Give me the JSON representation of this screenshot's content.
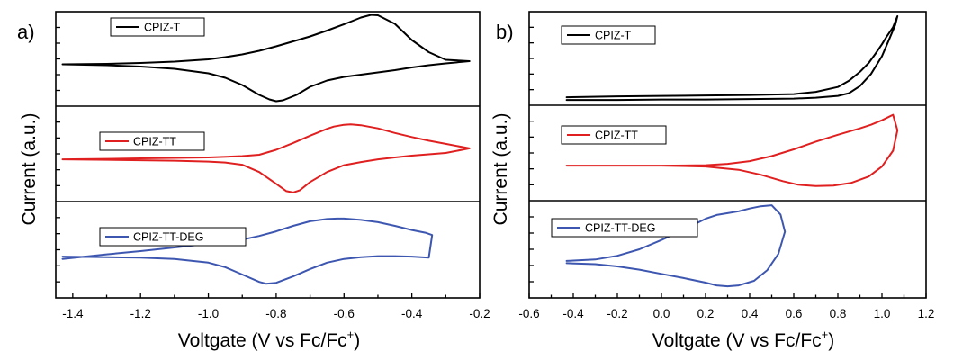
{
  "figure": {
    "ylabel": "Current (a.u.)",
    "xlabel_main": "Voltgate (V vs Fc/Fc",
    "xlabel_sup": "+",
    "xlabel_end": ")"
  },
  "colors": {
    "CPIZ-T": "#000000",
    "CPIZ-TT": "#e02020",
    "CPIZ-TT-DEG": "#3d56b0"
  },
  "chart_data": [
    {
      "panel": "a)",
      "type": "line",
      "xlim": [
        -1.45,
        -0.2
      ],
      "xticks": [
        -1.4,
        -1.2,
        -1.0,
        -0.8,
        -0.6,
        -0.4,
        -0.2
      ],
      "xtick_labels": [
        "-1.4",
        "-1.2",
        "-1.0",
        "-0.8",
        "-0.6",
        "-0.4",
        "-0.2"
      ],
      "xlabel": "Voltgate (V vs Fc/Fc+)",
      "ylabel": "Current (a.u.)",
      "stacked_panels": [
        {
          "ylim": [
            -1.05,
            1.05
          ],
          "series": [
            {
              "name": "CPIZ-T",
              "color": "#000000",
              "x": [
                -1.43,
                -1.3,
                -1.2,
                -1.1,
                -1.0,
                -0.95,
                -0.9,
                -0.85,
                -0.82,
                -0.8,
                -0.78,
                -0.74,
                -0.7,
                -0.65,
                -0.6,
                -0.55,
                -0.5,
                -0.45,
                -0.4,
                -0.35,
                -0.3,
                -0.23,
                -0.3,
                -0.35,
                -0.4,
                -0.45,
                -0.5,
                -0.52,
                -0.55,
                -0.6,
                -0.65,
                -0.7,
                -0.75,
                -0.8,
                -0.85,
                -0.9,
                -0.95,
                -1.0,
                -1.1,
                -1.2,
                -1.3,
                -1.43
              ],
              "y": [
                -0.12,
                -0.14,
                -0.17,
                -0.22,
                -0.32,
                -0.42,
                -0.58,
                -0.8,
                -0.9,
                -0.94,
                -0.92,
                -0.8,
                -0.62,
                -0.48,
                -0.4,
                -0.35,
                -0.3,
                -0.25,
                -0.19,
                -0.14,
                -0.1,
                -0.05,
                -0.02,
                0.15,
                0.42,
                0.78,
                0.97,
                0.98,
                0.92,
                0.77,
                0.63,
                0.5,
                0.39,
                0.28,
                0.18,
                0.1,
                0.04,
                -0.01,
                -0.06,
                -0.09,
                -0.11,
                -0.12
              ]
            }
          ]
        },
        {
          "ylim": [
            -1.05,
            1.05
          ],
          "series": [
            {
              "name": "CPIZ-TT",
              "color": "#e02020",
              "x": [
                -1.43,
                -1.3,
                -1.2,
                -1.1,
                -1.0,
                -0.95,
                -0.9,
                -0.85,
                -0.8,
                -0.77,
                -0.75,
                -0.73,
                -0.7,
                -0.65,
                -0.6,
                -0.55,
                -0.5,
                -0.45,
                -0.4,
                -0.35,
                -0.3,
                -0.23,
                -0.3,
                -0.35,
                -0.4,
                -0.45,
                -0.5,
                -0.55,
                -0.58,
                -0.6,
                -0.63,
                -0.65,
                -0.7,
                -0.75,
                -0.8,
                -0.85,
                -0.9,
                -1.0,
                -1.1,
                -1.2,
                -1.3,
                -1.43
              ],
              "y": [
                -0.12,
                -0.13,
                -0.14,
                -0.15,
                -0.17,
                -0.19,
                -0.24,
                -0.4,
                -0.66,
                -0.82,
                -0.85,
                -0.8,
                -0.62,
                -0.4,
                -0.25,
                -0.18,
                -0.12,
                -0.08,
                -0.04,
                -0.01,
                0.02,
                0.12,
                0.22,
                0.29,
                0.37,
                0.46,
                0.56,
                0.63,
                0.65,
                0.64,
                0.6,
                0.55,
                0.4,
                0.24,
                0.09,
                -0.02,
                -0.05,
                -0.08,
                -0.09,
                -0.1,
                -0.11,
                -0.12
              ]
            }
          ]
        },
        {
          "ylim": [
            -1.05,
            1.05
          ],
          "series": [
            {
              "name": "CPIZ-TT-DEG",
              "color": "#3d56b0",
              "x": [
                -1.43,
                -1.3,
                -1.2,
                -1.1,
                -1.0,
                -0.95,
                -0.9,
                -0.85,
                -0.83,
                -0.8,
                -0.75,
                -0.7,
                -0.65,
                -0.6,
                -0.55,
                -0.5,
                -0.45,
                -0.4,
                -0.35,
                -0.34,
                -0.36,
                -0.4,
                -0.45,
                -0.5,
                -0.55,
                -0.6,
                -0.62,
                -0.65,
                -0.7,
                -0.75,
                -0.8,
                -0.85,
                -0.9,
                -1.0,
                -1.1,
                -1.2,
                -1.3,
                -1.43
              ],
              "y": [
                -0.15,
                -0.16,
                -0.17,
                -0.2,
                -0.28,
                -0.38,
                -0.54,
                -0.7,
                -0.74,
                -0.72,
                -0.58,
                -0.42,
                -0.28,
                -0.2,
                -0.16,
                -0.14,
                -0.14,
                -0.15,
                -0.17,
                0.32,
                0.37,
                0.43,
                0.52,
                0.6,
                0.65,
                0.68,
                0.68,
                0.67,
                0.62,
                0.52,
                0.4,
                0.3,
                0.22,
                0.13,
                0.05,
                -0.03,
                -0.1,
                -0.2
              ]
            }
          ]
        }
      ]
    },
    {
      "panel": "b)",
      "type": "line",
      "xlim": [
        -0.6,
        1.2
      ],
      "xticks": [
        -0.6,
        -0.4,
        -0.2,
        0.0,
        0.2,
        0.4,
        0.6,
        0.8,
        1.0,
        1.2
      ],
      "xtick_labels": [
        "-0.6",
        "-0.4",
        "-0.2",
        "0.0",
        "0.2",
        "0.4",
        "0.6",
        "0.8",
        "1.0",
        "1.2"
      ],
      "xlabel": "Voltgate (V vs Fc/Fc+)",
      "ylabel": "Current (a.u.)",
      "stacked_panels": [
        {
          "ylim": [
            -1.05,
            1.05
          ],
          "series": [
            {
              "name": "CPIZ-T",
              "color": "#000000",
              "x": [
                -0.43,
                -0.2,
                0.0,
                0.2,
                0.4,
                0.6,
                0.7,
                0.8,
                0.85,
                0.9,
                0.95,
                1.0,
                1.03,
                1.06,
                1.07,
                1.05,
                1.02,
                1.0,
                0.97,
                0.94,
                0.9,
                0.85,
                0.8,
                0.7,
                0.6,
                0.4,
                0.2,
                0.0,
                -0.2,
                -0.43
              ],
              "y": [
                -0.93,
                -0.93,
                -0.92,
                -0.92,
                -0.91,
                -0.9,
                -0.88,
                -0.84,
                -0.78,
                -0.62,
                -0.35,
                0.05,
                0.4,
                0.75,
                0.95,
                0.7,
                0.48,
                0.32,
                0.1,
                -0.1,
                -0.3,
                -0.5,
                -0.64,
                -0.75,
                -0.8,
                -0.82,
                -0.83,
                -0.84,
                -0.85,
                -0.87
              ]
            }
          ]
        },
        {
          "ylim": [
            -1.05,
            1.05
          ],
          "series": [
            {
              "name": "CPIZ-TT",
              "color": "#e02020",
              "x": [
                -0.43,
                -0.2,
                0.0,
                0.2,
                0.35,
                0.45,
                0.55,
                0.62,
                0.7,
                0.78,
                0.86,
                0.94,
                1.0,
                1.05,
                1.07,
                1.05,
                1.0,
                0.95,
                0.9,
                0.8,
                0.7,
                0.6,
                0.5,
                0.4,
                0.3,
                0.2,
                0.0,
                -0.2,
                -0.43
              ],
              "y": [
                -0.28,
                -0.28,
                -0.28,
                -0.3,
                -0.37,
                -0.48,
                -0.62,
                -0.7,
                -0.73,
                -0.72,
                -0.66,
                -0.52,
                -0.3,
                0.05,
                0.5,
                0.84,
                0.72,
                0.62,
                0.54,
                0.4,
                0.25,
                0.08,
                -0.07,
                -0.18,
                -0.24,
                -0.27,
                -0.28,
                -0.28,
                -0.28
              ]
            }
          ]
        },
        {
          "ylim": [
            -1.05,
            1.05
          ],
          "series": [
            {
              "name": "CPIZ-TT-DEG",
              "color": "#3d56b0",
              "x": [
                -0.43,
                -0.3,
                -0.2,
                -0.1,
                0.0,
                0.1,
                0.2,
                0.25,
                0.3,
                0.35,
                0.42,
                0.48,
                0.53,
                0.56,
                0.54,
                0.5,
                0.45,
                0.4,
                0.35,
                0.3,
                0.25,
                0.2,
                0.1,
                0.0,
                -0.1,
                -0.2,
                -0.3,
                -0.43
              ],
              "y": [
                -0.3,
                -0.32,
                -0.37,
                -0.44,
                -0.53,
                -0.62,
                -0.72,
                -0.78,
                -0.8,
                -0.78,
                -0.68,
                -0.45,
                -0.1,
                0.38,
                0.75,
                0.95,
                0.93,
                0.88,
                0.82,
                0.78,
                0.74,
                0.66,
                0.42,
                0.2,
                0.0,
                -0.14,
                -0.22,
                -0.25
              ]
            }
          ]
        }
      ]
    }
  ]
}
